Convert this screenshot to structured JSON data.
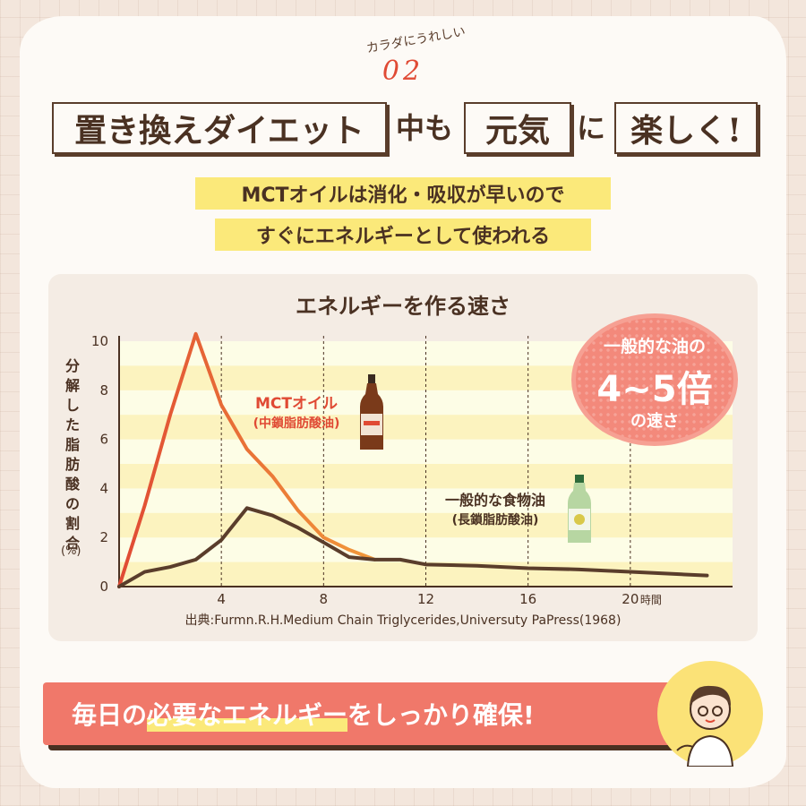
{
  "kicker": "カラダにうれしい",
  "number": "02",
  "title": {
    "part1": "置き換えダイエット",
    "part2": "中も",
    "part3": "元気",
    "part4": "に",
    "part5": "楽しく!"
  },
  "subtitle": {
    "line1": "MCTオイルは消化・吸収が早いので",
    "line2": "すぐにエネルギーとして使われる"
  },
  "chart_data": {
    "type": "line",
    "title": "エネルギーを作る速さ",
    "ylabel": "分解した脂肪酸の割合",
    "yunit": "(%)",
    "xlim": [
      0,
      24
    ],
    "ylim": [
      0,
      10
    ],
    "yticks": [
      "0",
      "2",
      "4",
      "6",
      "8",
      "10"
    ],
    "xticks": [
      "4",
      "8",
      "12",
      "16",
      "20"
    ],
    "xunit": "時間",
    "grid": "dashed vertical at x ticks; alternating horizontal bands",
    "series": [
      {
        "name": "MCTオイル",
        "sub": "(中鎖脂肪酸油)",
        "color": "#e04a34",
        "x": [
          0,
          1,
          2,
          3,
          4,
          5,
          6,
          7,
          8,
          9,
          10
        ],
        "y": [
          0,
          3.3,
          7.0,
          10.3,
          7.4,
          5.6,
          4.5,
          3.1,
          2.0,
          1.5,
          1.1
        ]
      },
      {
        "name": "一般的な食物油",
        "sub": "(長鎖脂肪酸油)",
        "color": "#5a3d2b",
        "x": [
          0,
          1,
          2,
          3,
          4,
          5,
          6,
          7,
          8,
          9,
          10,
          11,
          12,
          14,
          16,
          18,
          20,
          22,
          23
        ],
        "y": [
          0,
          0.6,
          0.8,
          1.1,
          1.9,
          3.2,
          2.9,
          2.4,
          1.8,
          1.2,
          1.1,
          1.1,
          0.9,
          0.85,
          0.75,
          0.7,
          0.6,
          0.5,
          0.45
        ]
      }
    ],
    "source": "出典:Furmn.R.H.Medium Chain Triglycerides,Universuty PaPress(1968)"
  },
  "badge": {
    "line1": "一般的な油の",
    "line2": "4~5倍",
    "line3": "の速さ"
  },
  "banner": {
    "pre": "毎日の",
    "em": "必要なエネルギー",
    "post": "をしっかり確保!"
  },
  "colors": {
    "accent": "#e04a34",
    "brown": "#4a3122",
    "highlight": "#fbe97a",
    "banner": "#f0786a",
    "badge": "#f3897b"
  }
}
